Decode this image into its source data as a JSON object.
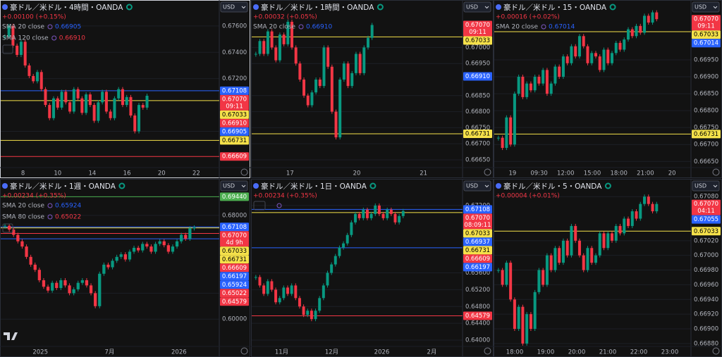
{
  "chart_data": [
    {
      "type": "candlestick",
      "title": "豪ドル／米ドル・4時間・OANDA",
      "change": "+0.00100 (+0.15%)",
      "currency": "USD",
      "indicators": [
        {
          "name": "SMA 20 close",
          "value": "0.66905",
          "color": "#2962ff"
        },
        {
          "name": "SMA 120 close",
          "value": "0.66910",
          "color": "#f23645"
        }
      ],
      "ylim": [
        0.6653,
        0.6769
      ],
      "yticks": [
        {
          "value": 0.676,
          "label": "0.67600"
        },
        {
          "value": 0.674,
          "label": "0.67400"
        },
        {
          "value": 0.672,
          "label": "0.67200"
        },
        {
          "value": 0.668,
          "label": "0.66800"
        }
      ],
      "xticks": [
        "8",
        "10",
        "14",
        "16",
        "20",
        "22"
      ],
      "values": [
        0.6752,
        0.676,
        0.6745,
        0.6738,
        0.6748,
        0.673,
        0.6722,
        0.6718,
        0.6725,
        0.6712,
        0.67,
        0.669,
        0.6705,
        0.6698,
        0.671,
        0.6702,
        0.6695,
        0.6712,
        0.6705,
        0.6694,
        0.6708,
        0.67,
        0.6688,
        0.6702,
        0.671,
        0.6695,
        0.669,
        0.6705,
        0.6712,
        0.67,
        0.6706,
        0.6692,
        0.668,
        0.67,
        0.6698,
        0.6707
      ],
      "levels": [
        {
          "value": 0.67108,
          "color": "#2962ff",
          "line": true
        },
        {
          "value": 0.6707,
          "label": "0.67070",
          "sub": "09:11",
          "color": "#f23645"
        },
        {
          "value": 0.6691,
          "label": "0.66910",
          "color": "#f23645"
        },
        {
          "value": 0.67033,
          "color": "#f5e14a",
          "line": true
        },
        {
          "value": 0.66905,
          "color": "#2962ff"
        },
        {
          "value": 0.66731,
          "color": "#f5e14a",
          "line": true
        },
        {
          "value": 0.66609,
          "color": "#f23645",
          "line": true
        }
      ]
    },
    {
      "type": "candlestick",
      "title": "豪ドル／米ドル・1時間・OANDA",
      "change": "+0.00032 (+0.05%)",
      "currency": "USD",
      "indicators": [
        {
          "name": "SMA 20 close",
          "value": "0.66910",
          "color": "#2962ff"
        }
      ],
      "ylim": [
        0.66628,
        0.67104
      ],
      "yticks": [
        {
          "value": 0.67,
          "label": "0.67000"
        },
        {
          "value": 0.6695,
          "label": "0.66950"
        },
        {
          "value": 0.6685,
          "label": "0.66850"
        },
        {
          "value": 0.668,
          "label": "0.66800"
        },
        {
          "value": 0.6675,
          "label": "0.66750"
        },
        {
          "value": 0.667,
          "label": "0.66700"
        },
        {
          "value": 0.6665,
          "label": "0.66650"
        }
      ],
      "xticks": [
        "17",
        "20",
        "21"
      ],
      "values": [
        0.6698,
        0.6702,
        0.6698,
        0.6705,
        0.67,
        0.6696,
        0.6704,
        0.6701,
        0.6708,
        0.67,
        0.6695,
        0.669,
        0.6685,
        0.6682,
        0.6686,
        0.669,
        0.6688,
        0.67,
        0.6694,
        0.668,
        0.6672,
        0.669,
        0.6695,
        0.6688,
        0.6692,
        0.6698,
        0.6692,
        0.67,
        0.6703,
        0.6707
      ],
      "levels": [
        {
          "value": 0.6707,
          "label": "0.67070",
          "sub": "09:11",
          "color": "#f23645"
        },
        {
          "value": 0.67033,
          "color": "#f5e14a",
          "line": true
        },
        {
          "value": 0.6691,
          "label": "0.66910",
          "color": "#2962ff"
        },
        {
          "value": 0.66731,
          "color": "#f5e14a",
          "line": true
        }
      ]
    },
    {
      "type": "candlestick",
      "title": "豪ドル／米ドル・15・OANDA",
      "change": "+0.00016 (+0.02%)",
      "currency": "USD",
      "indicators": [
        {
          "name": "SMA 20 close",
          "value": "0.67014",
          "color": "#2962ff"
        }
      ],
      "ylim": [
        0.66634,
        0.67085
      ],
      "yticks": [
        {
          "value": 0.6695,
          "label": "0.66950"
        },
        {
          "value": 0.669,
          "label": "0.66900"
        },
        {
          "value": 0.6685,
          "label": "0.66850"
        },
        {
          "value": 0.668,
          "label": "0.66800"
        },
        {
          "value": 0.6675,
          "label": "0.66750"
        },
        {
          "value": 0.667,
          "label": "0.66700"
        },
        {
          "value": 0.6665,
          "label": "0.66650"
        }
      ],
      "xticks": [
        "19",
        "09:30",
        "12:00",
        "15:00",
        "18:00",
        "21:00",
        "20"
      ],
      "values": [
        0.6672,
        0.6669,
        0.6678,
        0.667,
        0.6685,
        0.669,
        0.6684,
        0.6688,
        0.6686,
        0.669,
        0.6688,
        0.6692,
        0.6685,
        0.6688,
        0.6693,
        0.669,
        0.6696,
        0.6694,
        0.6699,
        0.6696,
        0.6702,
        0.6699,
        0.6694,
        0.6697,
        0.6696,
        0.6692,
        0.6698,
        0.6694,
        0.6697,
        0.67,
        0.6698,
        0.6701,
        0.6704,
        0.6702,
        0.6705,
        0.6703,
        0.6708,
        0.6706,
        0.6709,
        0.6707
      ],
      "levels": [
        {
          "value": 0.6707,
          "label": "0.67070",
          "sub": "09:11",
          "color": "#f23645"
        },
        {
          "value": 0.67033,
          "color": "#f5e14a",
          "line": true
        },
        {
          "value": 0.67014,
          "color": "#2962ff"
        },
        {
          "value": 0.66731,
          "color": "#f5e14a",
          "line": true
        }
      ]
    },
    {
      "type": "candlestick",
      "title": "豪ドル／米ドル・1週・OANDA",
      "change": "+0.00234 (+0.35%)",
      "currency": "USD",
      "indicators": [
        {
          "name": "SMA 20 close",
          "value": "0.65924",
          "color": "#2962ff"
        },
        {
          "name": "SMA 80 close",
          "value": "0.65022",
          "color": "#f23645"
        }
      ],
      "ylim": [
        0.5795,
        0.6973
      ],
      "yticks": [
        {
          "value": 0.68,
          "label": "0.68000"
        },
        {
          "value": 0.62,
          "label": "0.62000"
        },
        {
          "value": 0.6,
          "label": "0.60000"
        }
      ],
      "xticks": [
        "2025",
        "7月",
        "2026"
      ],
      "values": [
        0.672,
        0.669,
        0.665,
        0.66,
        0.656,
        0.648,
        0.642,
        0.638,
        0.63,
        0.625,
        0.622,
        0.628,
        0.624,
        0.63,
        0.626,
        0.62,
        0.623,
        0.628,
        0.63,
        0.626,
        0.62,
        0.61,
        0.635,
        0.642,
        0.64,
        0.645,
        0.648,
        0.65,
        0.646,
        0.652,
        0.655,
        0.653,
        0.658,
        0.656,
        0.652,
        0.658,
        0.66,
        0.657,
        0.652,
        0.656,
        0.66,
        0.665,
        0.662,
        0.67,
        0.6707
      ],
      "levels": [
        {
          "value": 0.6944,
          "label": "0.69440",
          "color": "#4caf50",
          "line": true
        },
        {
          "value": 0.67108,
          "color": "#2962ff",
          "line": true
        },
        {
          "value": 0.6707,
          "label": "0.67070",
          "sub": "4d 9h",
          "color": "#f23645"
        },
        {
          "value": 0.67033,
          "color": "#f5e14a",
          "line": true
        },
        {
          "value": 0.66731,
          "color": "#f5e14a"
        },
        {
          "value": 0.66609,
          "color": "#f23645",
          "line": true
        },
        {
          "value": 0.66197,
          "color": "#2962ff",
          "line": true
        },
        {
          "value": 0.65924,
          "color": "#2962ff"
        },
        {
          "value": 0.65022,
          "color": "#f23645"
        },
        {
          "value": 0.64579,
          "color": "#f23645"
        }
      ]
    },
    {
      "type": "candlestick",
      "title": "豪ドル／米ドル・1日・OANDA",
      "change": "+0.00234 (+0.35%)",
      "currency": "USD",
      "indicators": [],
      "ylim": [
        0.63867,
        0.675
      ],
      "yticks": [
        {
          "value": 0.672,
          "label": "0.67200"
        },
        {
          "value": 0.656,
          "label": "0.65600"
        },
        {
          "value": 0.652,
          "label": "0.65200"
        },
        {
          "value": 0.648,
          "label": "0.64800"
        },
        {
          "value": 0.644,
          "label": "0.64400"
        },
        {
          "value": 0.64,
          "label": "0.64000"
        }
      ],
      "xticks": [
        "11月",
        "12月",
        "2026",
        "2月"
      ],
      "values": [
        0.655,
        0.653,
        0.651,
        0.654,
        0.652,
        0.649,
        0.65,
        0.6525,
        0.651,
        0.653,
        0.65,
        0.648,
        0.646,
        0.647,
        0.645,
        0.647,
        0.65,
        0.653,
        0.656,
        0.658,
        0.66,
        0.662,
        0.663,
        0.665,
        0.668,
        0.67,
        0.669,
        0.671,
        0.669,
        0.67,
        0.672,
        0.67,
        0.669,
        0.671,
        0.67,
        0.668,
        0.6695,
        0.6707
      ],
      "levels": [
        {
          "value": 0.67108,
          "color": "#2962ff",
          "line": true
        },
        {
          "value": 0.6707,
          "label": "0.67070",
          "sub": "08:09:11",
          "color": "#f23645"
        },
        {
          "value": 0.67033,
          "color": "#f5e14a",
          "line": true
        },
        {
          "value": 0.66937,
          "color": "#2962ff"
        },
        {
          "value": 0.66731,
          "color": "#f5e14a"
        },
        {
          "value": 0.66609,
          "color": "#f23645"
        },
        {
          "value": 0.66197,
          "color": "#2962ff",
          "line": true
        },
        {
          "value": 0.64579,
          "color": "#f23645",
          "line": true
        }
      ]
    },
    {
      "type": "candlestick",
      "title": "豪ドル／米ドル・5・OANDA",
      "change": "+0.00004 (+0.01%)",
      "currency": "USD",
      "indicators": [],
      "ylim": [
        0.66877,
        0.67085
      ],
      "yticks": [
        {
          "value": 0.6708,
          "label": "0.67080"
        },
        {
          "value": 0.6702,
          "label": "0.67020"
        },
        {
          "value": 0.67,
          "label": "0.67000"
        },
        {
          "value": 0.6698,
          "label": "0.66980"
        },
        {
          "value": 0.6696,
          "label": "0.66960"
        },
        {
          "value": 0.6694,
          "label": "0.66940"
        },
        {
          "value": 0.6692,
          "label": "0.66920"
        },
        {
          "value": 0.669,
          "label": "0.66900"
        },
        {
          "value": 0.6688,
          "label": "0.66880"
        }
      ],
      "xticks": [
        "18:00",
        "19:00",
        "20:00",
        "21:00",
        "22:00",
        "23:00"
      ],
      "values": [
        0.6698,
        0.6696,
        0.6699,
        0.6694,
        0.669,
        0.6693,
        0.6688,
        0.6692,
        0.669,
        0.6695,
        0.6698,
        0.6696,
        0.67,
        0.6698,
        0.6701,
        0.6699,
        0.6702,
        0.67,
        0.6704,
        0.6702,
        0.67,
        0.6698,
        0.6701,
        0.6699,
        0.67,
        0.6703,
        0.6701,
        0.6703,
        0.6702,
        0.6704,
        0.6703,
        0.6705,
        0.6704,
        0.6706,
        0.6705,
        0.6707,
        0.6708,
        0.6707,
        0.6706,
        0.6707
      ],
      "levels": [
        {
          "value": 0.6707,
          "label": "0.67070",
          "sub": "04:11",
          "color": "#f23645"
        },
        {
          "value": 0.67055,
          "color": "#2962ff"
        },
        {
          "value": 0.67033,
          "color": "#f5e14a",
          "line": true
        }
      ]
    }
  ]
}
